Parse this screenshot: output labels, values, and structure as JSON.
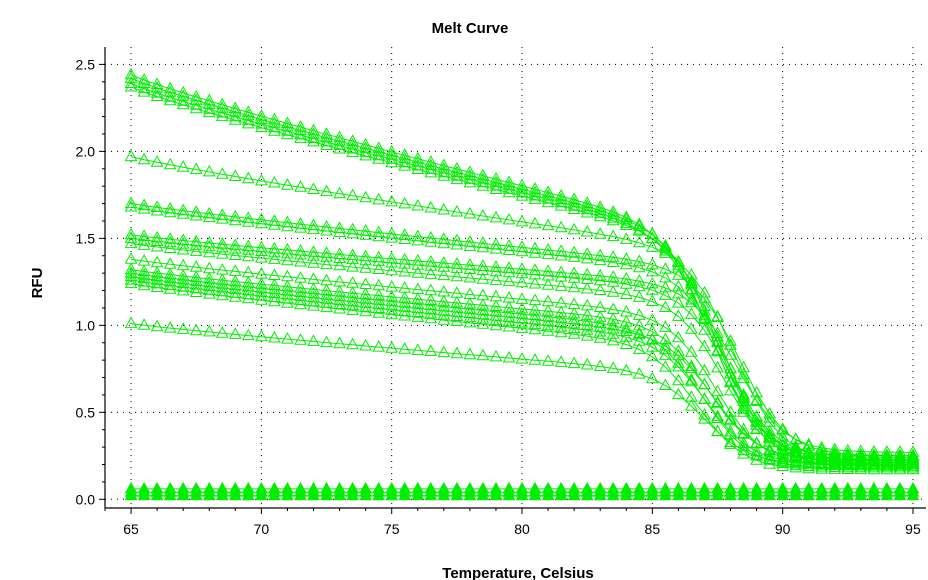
{
  "chart_data": {
    "type": "line",
    "title": "Melt Curve",
    "xlabel": "Temperature, Celsius",
    "ylabel": "RFU",
    "xlim": [
      64,
      95.5
    ],
    "ylim": [
      -0.05,
      2.6
    ],
    "xticks": [
      "65",
      "70",
      "75",
      "80",
      "85",
      "90",
      "95"
    ],
    "yticks": [
      "0.0",
      "0.5",
      "1.0",
      "1.5",
      "2.0",
      "2.5"
    ],
    "grid": true,
    "marker": "triangle",
    "series_color": "#00ee00",
    "x_start": 65,
    "x_end": 95,
    "x_step": 0.5,
    "series": [
      {
        "start": 2.44,
        "tm": 87.4,
        "base": 1.25,
        "end": 0.25
      },
      {
        "start": 2.42,
        "tm": 87.6,
        "base": 1.23,
        "end": 0.23
      },
      {
        "start": 2.39,
        "tm": 87.5,
        "base": 1.22,
        "end": 0.21
      },
      {
        "start": 2.37,
        "tm": 87.8,
        "base": 1.2,
        "end": 0.19
      },
      {
        "start": 1.97,
        "tm": 88.2,
        "base": 1.27,
        "end": 0.22
      },
      {
        "start": 1.7,
        "tm": 88.4,
        "base": 1.23,
        "end": 0.25
      },
      {
        "start": 1.68,
        "tm": 88.0,
        "base": 1.2,
        "end": 0.2
      },
      {
        "start": 1.52,
        "tm": 88.3,
        "base": 1.15,
        "end": 0.27
      },
      {
        "start": 1.5,
        "tm": 88.0,
        "base": 1.12,
        "end": 0.24
      },
      {
        "start": 1.47,
        "tm": 87.8,
        "base": 1.05,
        "end": 0.21
      },
      {
        "start": 1.38,
        "tm": 87.5,
        "base": 0.95,
        "end": 0.19
      },
      {
        "start": 1.32,
        "tm": 87.2,
        "base": 0.9,
        "end": 0.23
      },
      {
        "start": 1.3,
        "tm": 87.0,
        "base": 0.86,
        "end": 0.18
      },
      {
        "start": 1.28,
        "tm": 87.4,
        "base": 0.83,
        "end": 0.22
      },
      {
        "start": 1.26,
        "tm": 87.1,
        "base": 0.8,
        "end": 0.2
      },
      {
        "start": 1.24,
        "tm": 86.8,
        "base": 0.76,
        "end": 0.17
      },
      {
        "start": 1.01,
        "tm": 87.0,
        "base": 0.63,
        "end": 0.2
      },
      {
        "start": 0.06,
        "tm": 100,
        "base": 0.06,
        "end": 0.06
      },
      {
        "start": 0.04,
        "tm": 100,
        "base": 0.04,
        "end": 0.04
      },
      {
        "start": 0.02,
        "tm": 100,
        "base": 0.02,
        "end": 0.02
      }
    ]
  }
}
